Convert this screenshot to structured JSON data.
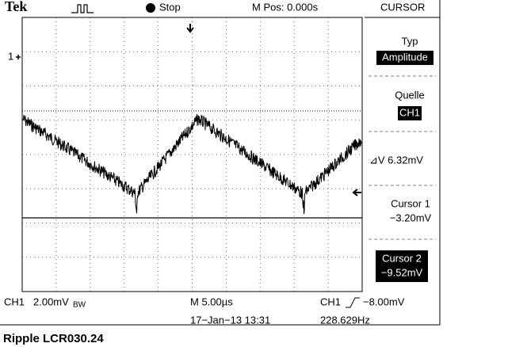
{
  "header": {
    "brand": "Tek",
    "state": "Stop",
    "position": "M Pos: 0.000s",
    "menu": "CURSOR"
  },
  "channel_marker": "1",
  "sidebar": {
    "type_label": "Typ",
    "type_value": "Amplitude",
    "source_label": "Quelle",
    "source_value": "CH1",
    "delta": "⊿V 6.32mV",
    "cursor1_label": "Cursor 1",
    "cursor1_value": "−3.20mV",
    "cursor2_label": "Cursor 2",
    "cursor2_value": "−9.52mV"
  },
  "footer": {
    "channel": "CH1",
    "scale": "2.00mV",
    "bandwidth": "BW",
    "timebase": "M 5.00µs",
    "trigger_channel": "CH1",
    "trigger_level": "−8.00mV",
    "date": "17−Jan−13 13:31",
    "frequency": "228.629Hz"
  },
  "caption": "Ripple LCR030.24"
}
